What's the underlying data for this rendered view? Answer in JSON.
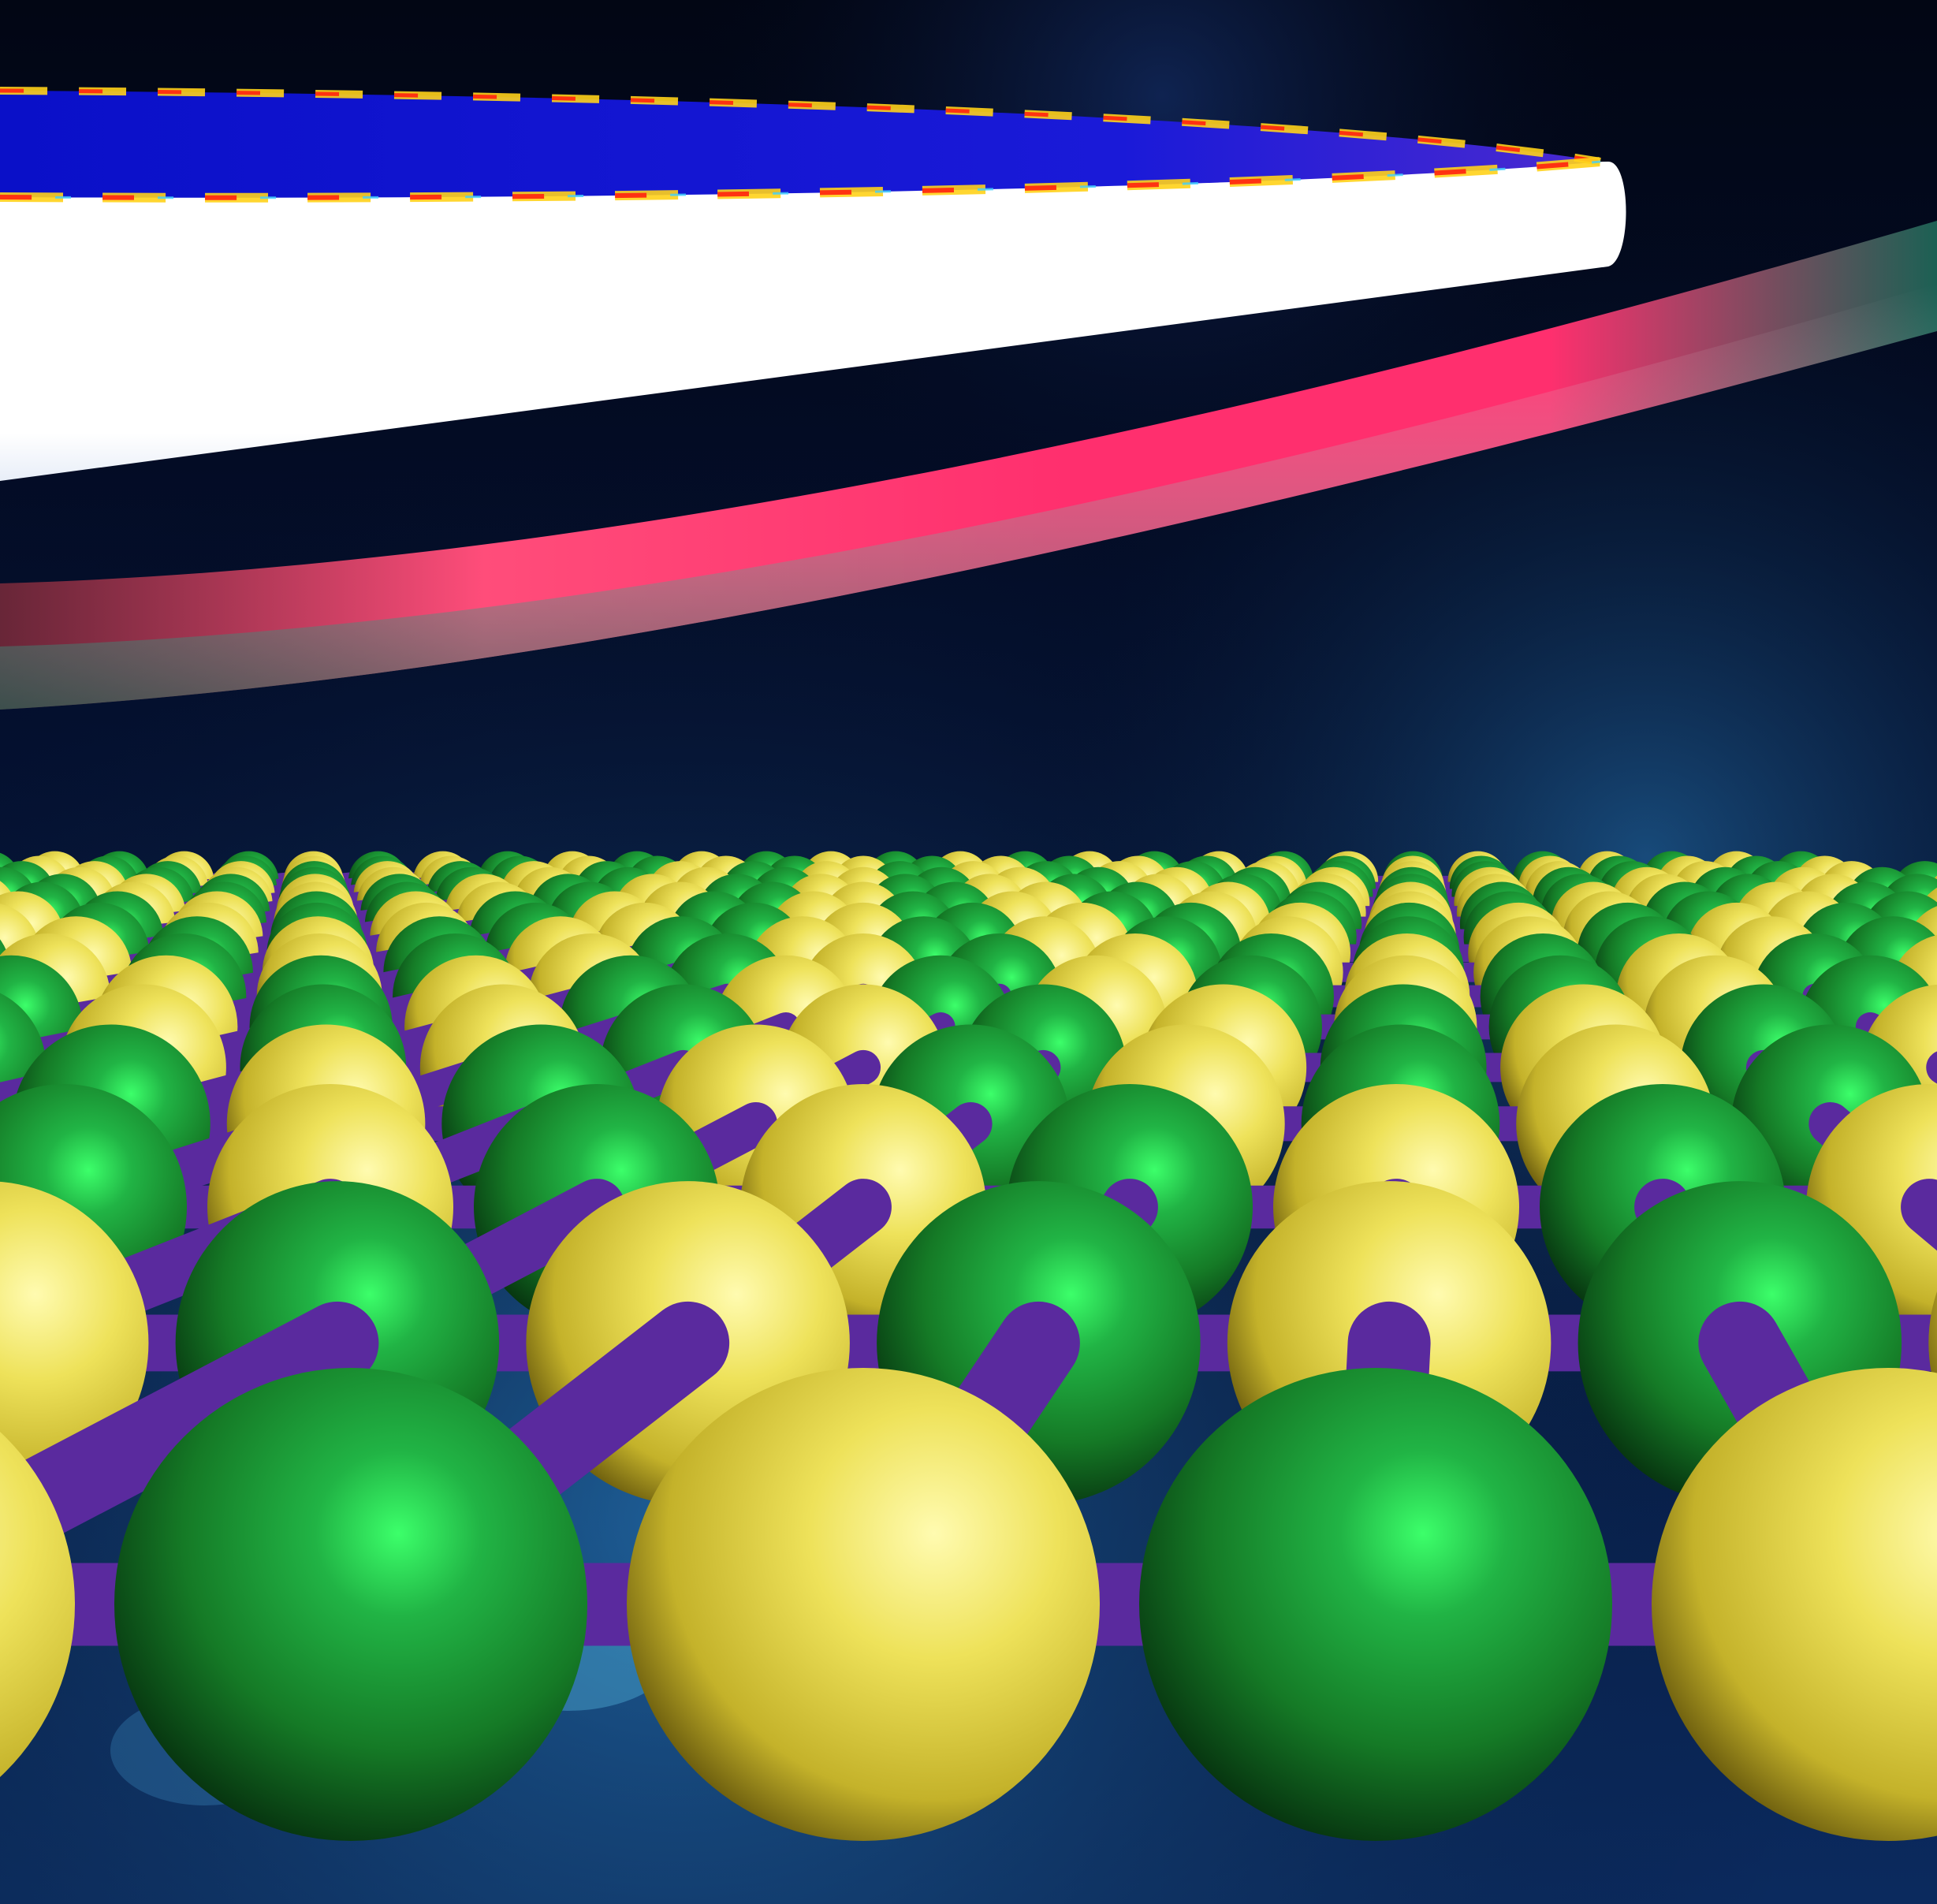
{
  "scene": {
    "subject": "lattice-under-ring-resonator",
    "colors": {
      "background_deep": "#020614",
      "background_mid": "#0b2a5e",
      "background_glow": "#2f8fd0",
      "disk_top": "#0a10c8",
      "disk_fringe_hot": "#ff2a10",
      "disk_fringe_warm": "#ffd21a",
      "disk_fringe_cool": "#3fd0ff",
      "disk_rim": "#ffffff",
      "waveguide_hot": "#ff2f6e",
      "waveguide_fade": "#1f6a5a",
      "atom_green": "#1f8a2e",
      "atom_green_highlight": "#3cff6a",
      "atom_yellow": "#e8dc4a",
      "atom_yellow_highlight": "#fffbb0",
      "bond": "#5a2a9e",
      "bond_highlight": "#9a5ae0"
    }
  }
}
